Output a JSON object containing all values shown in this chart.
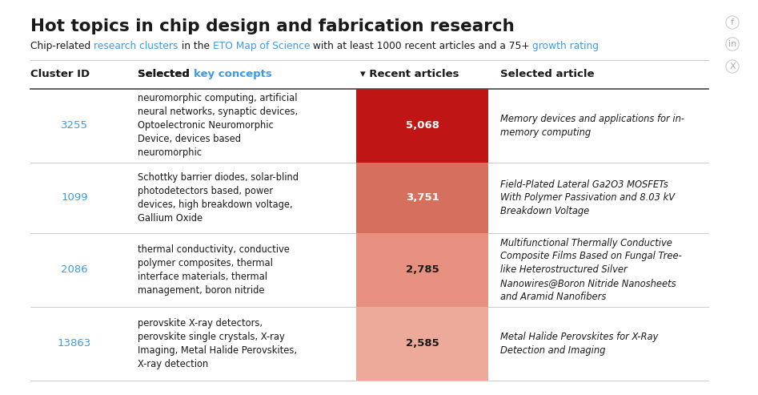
{
  "title": "Hot topics in chip design and fabrication research",
  "subtitle_plain": "Chip-related ",
  "subtitle_link1": "research clusters",
  "subtitle_mid1": " in the ",
  "subtitle_link2": "ETO Map of Science",
  "subtitle_mid2": " with at least 1000 recent articles and a 75+ ",
  "subtitle_link3": "growth rating",
  "col_header_key_concepts_color": "#3d9be9",
  "rows": [
    {
      "cluster_id": "3255",
      "key_concepts": "neuromorphic computing, artificial\nneural networks, synaptic devices,\nOptoelectronic Neuromorphic\nDevice, devices based\nneuromorphic",
      "recent_articles_str": "5,068",
      "selected_article": "Memory devices and applications for in-\nmemory computing",
      "bar_color": "#c01515",
      "num_color": "white"
    },
    {
      "cluster_id": "1099",
      "key_concepts": "Schottky barrier diodes, solar-blind\nphotodetectors based, power\ndevices, high breakdown voltage,\nGallium Oxide",
      "recent_articles_str": "3,751",
      "selected_article": "Field-Plated Lateral Ga2O3 MOSFETs\nWith Polymer Passivation and 8.03 kV\nBreakdown Voltage",
      "bar_color": "#d4705d",
      "num_color": "white"
    },
    {
      "cluster_id": "2086",
      "key_concepts": "thermal conductivity, conductive\npolymer composites, thermal\ninterface materials, thermal\nmanagement, boron nitride",
      "recent_articles_str": "2,785",
      "selected_article": "Multifunctional Thermally Conductive\nComposite Films Based on Fungal Tree-\nlike Heterostructured Silver\nNanowires@Boron Nitride Nanosheets\nand Aramid Nanofibers",
      "bar_color": "#e89080",
      "num_color": "#1a1a1a"
    },
    {
      "cluster_id": "13863",
      "key_concepts": "perovskite X-ray detectors,\nperovskite single crystals, X-ray\nImaging, Metal Halide Perovskites,\nX-ray detection",
      "recent_articles_str": "2,585",
      "selected_article": "Metal Halide Perovskites for X-Ray\nDetection and Imaging",
      "bar_color": "#edaa9a",
      "num_color": "#1a1a1a"
    }
  ],
  "link_color": "#3d9be9",
  "text_color": "#1a1a1a",
  "divider_color": "#cccccc",
  "heavy_line_color": "#555555"
}
